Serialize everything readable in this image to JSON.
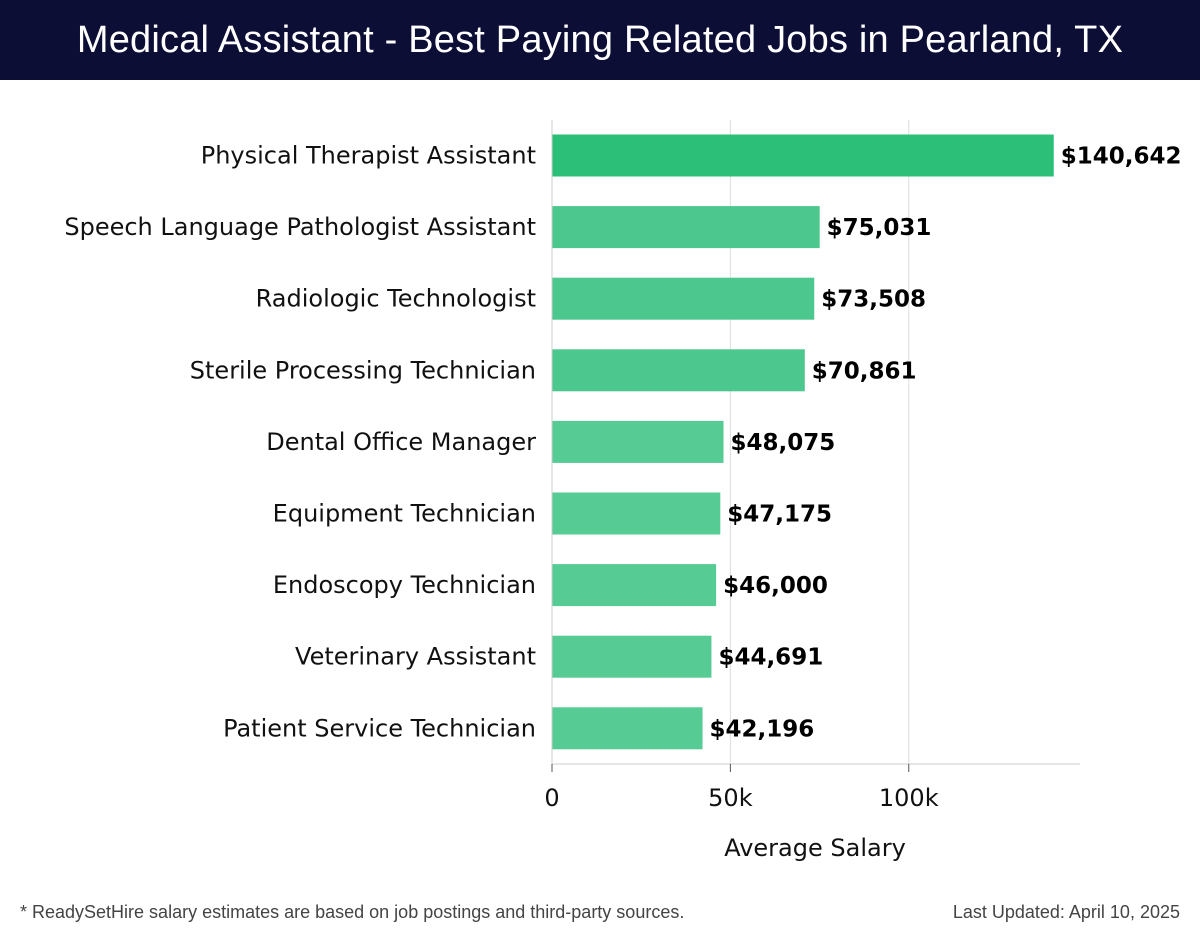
{
  "header": {
    "title": "Medical Assistant - Best Paying Related Jobs in Pearland, TX"
  },
  "footer": {
    "note": "* ReadySetHire salary estimates are based on job postings and third-party sources.",
    "updated": "Last Updated: April 10, 2025"
  },
  "colors": {
    "header_bg": "#0c0e35",
    "bar_top": "#2bbf78",
    "bar": "#4cc78e",
    "bar_light": "#56cb93",
    "grid": "#dddddd"
  },
  "chart_data": {
    "type": "bar",
    "orientation": "horizontal",
    "title": "Medical Assistant - Best Paying Related Jobs in Pearland, TX",
    "xlabel": "Average Salary",
    "ylabel": "",
    "xlim": [
      0,
      148000
    ],
    "xticks": [
      0,
      50000,
      100000
    ],
    "xtick_labels": [
      "0",
      "50k",
      "100k"
    ],
    "grid": true,
    "categories": [
      "Physical Therapist Assistant",
      "Speech Language Pathologist Assistant",
      "Radiologic Technologist",
      "Sterile Processing Technician",
      "Dental Office Manager",
      "Equipment Technician",
      "Endoscopy Technician",
      "Veterinary Assistant",
      "Patient Service Technician"
    ],
    "values": [
      140642,
      75031,
      73508,
      70861,
      48075,
      47175,
      46000,
      44691,
      42196
    ],
    "value_labels": [
      "$140,642",
      "$75,031",
      "$73,508",
      "$70,861",
      "$48,075",
      "$47,175",
      "$46,000",
      "$44,691",
      "$42,196"
    ]
  }
}
